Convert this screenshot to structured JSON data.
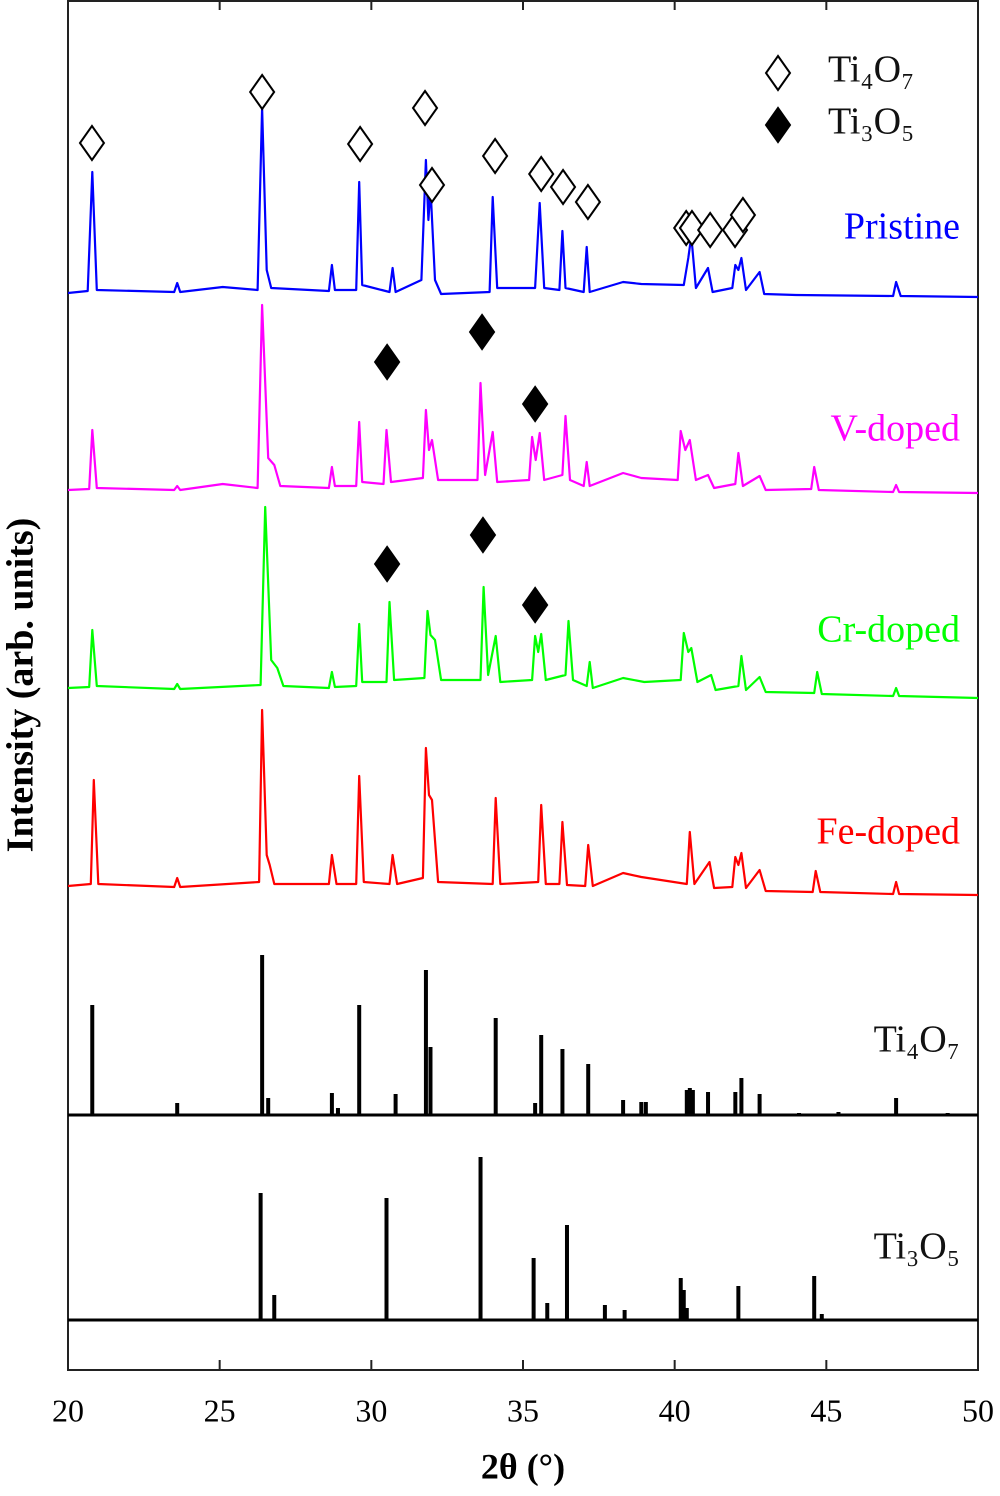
{
  "chart_data": {
    "type": "line",
    "xlabel": "2θ (°)",
    "ylabel": "Intensity (arb. units)",
    "xlim": [
      20,
      50
    ],
    "xticks": [
      20,
      25,
      30,
      35,
      40,
      45,
      50
    ],
    "ylim": [
      0,
      1370
    ],
    "legend": "upper right",
    "series": [
      {
        "name": "Pristine",
        "color": "#0000ff",
        "x": [
          20.0,
          20.65,
          20.8,
          20.95,
          23.5,
          23.6,
          23.7,
          25.1,
          26.25,
          26.4,
          26.55,
          26.7,
          28.6,
          28.7,
          28.8,
          29.5,
          29.6,
          29.7,
          30.6,
          30.7,
          30.8,
          31.65,
          31.8,
          31.88,
          31.95,
          32.1,
          32.3,
          33.9,
          34.0,
          34.15,
          35.4,
          35.55,
          35.7,
          36.2,
          36.3,
          36.4,
          37.0,
          37.1,
          37.2,
          38.3,
          38.9,
          40.3,
          40.45,
          40.55,
          40.7,
          41.1,
          41.25,
          41.9,
          42.0,
          42.1,
          42.2,
          42.35,
          42.8,
          42.95,
          44.0,
          47.2,
          47.3,
          47.45,
          50.0
        ],
        "values": [
          1077,
          1079,
          1198,
          1080,
          1078,
          1087,
          1078,
          1083,
          1080,
          1262,
          1100,
          1082,
          1079,
          1105,
          1080,
          1080,
          1188,
          1085,
          1078,
          1102,
          1078,
          1090,
          1210,
          1150,
          1182,
          1090,
          1076,
          1078,
          1173,
          1082,
          1082,
          1167,
          1082,
          1080,
          1139,
          1082,
          1078,
          1123,
          1078,
          1088,
          1086,
          1085,
          1112,
          1134,
          1082,
          1102,
          1078,
          1082,
          1105,
          1100,
          1112,
          1080,
          1098,
          1076,
          1075,
          1074,
          1088,
          1074,
          1073
        ]
      },
      {
        "name": "V-doped",
        "color": "#ff00ff",
        "x": [
          20.0,
          20.7,
          20.8,
          20.95,
          23.5,
          23.6,
          23.7,
          25.1,
          26.25,
          26.4,
          26.6,
          26.8,
          27.0,
          28.6,
          28.7,
          28.8,
          29.5,
          29.6,
          29.7,
          30.4,
          30.5,
          30.65,
          31.7,
          31.8,
          31.9,
          32.0,
          32.2,
          33.5,
          33.6,
          33.75,
          34.0,
          34.15,
          35.2,
          35.3,
          35.42,
          35.55,
          35.7,
          36.3,
          36.4,
          36.55,
          37.0,
          37.1,
          37.2,
          38.3,
          38.9,
          40.1,
          40.2,
          40.35,
          40.5,
          40.7,
          41.1,
          41.3,
          42.0,
          42.1,
          42.25,
          42.8,
          43.0,
          44.5,
          44.6,
          44.75,
          47.2,
          47.3,
          47.4,
          50.0
        ],
        "values": [
          880,
          881,
          940,
          882,
          880,
          884,
          880,
          886,
          882,
          1065,
          912,
          905,
          884,
          882,
          903,
          884,
          884,
          948,
          888,
          886,
          940,
          888,
          892,
          960,
          920,
          930,
          890,
          890,
          987,
          895,
          938,
          888,
          890,
          933,
          910,
          937,
          890,
          895,
          954,
          890,
          884,
          908,
          884,
          897,
          892,
          890,
          939,
          920,
          930,
          890,
          895,
          882,
          886,
          917,
          884,
          894,
          880,
          881,
          903,
          880,
          878,
          885,
          878,
          877
        ]
      },
      {
        "name": "Cr-doped",
        "color": "#00ff00",
        "x": [
          20.0,
          20.7,
          20.8,
          20.95,
          23.5,
          23.6,
          23.7,
          26.35,
          26.5,
          26.7,
          26.9,
          27.1,
          28.6,
          28.7,
          28.8,
          29.5,
          29.6,
          29.7,
          30.5,
          30.6,
          30.75,
          31.75,
          31.85,
          31.95,
          32.1,
          32.3,
          33.6,
          33.7,
          33.85,
          34.1,
          34.25,
          35.3,
          35.4,
          35.5,
          35.6,
          35.75,
          36.4,
          36.5,
          36.65,
          37.1,
          37.2,
          37.3,
          38.3,
          39.0,
          40.2,
          40.3,
          40.45,
          40.55,
          40.75,
          41.2,
          41.35,
          42.1,
          42.2,
          42.35,
          42.8,
          43.0,
          44.6,
          44.7,
          44.85,
          47.2,
          47.3,
          47.4,
          50.0
        ],
        "values": [
          682,
          683,
          740,
          684,
          681,
          686,
          681,
          685,
          863,
          710,
          702,
          684,
          682,
          698,
          683,
          684,
          746,
          688,
          688,
          768,
          690,
          692,
          759,
          735,
          730,
          690,
          690,
          783,
          695,
          734,
          688,
          690,
          734,
          718,
          736,
          690,
          695,
          749,
          690,
          684,
          708,
          682,
          692,
          688,
          690,
          737,
          718,
          722,
          688,
          695,
          680,
          684,
          714,
          680,
          693,
          678,
          677,
          698,
          676,
          674,
          682,
          674,
          672
        ]
      },
      {
        "name": "Fe-doped",
        "color": "#ff0000",
        "x": [
          20.0,
          20.75,
          20.85,
          21.0,
          23.5,
          23.6,
          23.7,
          26.3,
          26.4,
          26.55,
          26.65,
          26.8,
          28.6,
          28.7,
          28.85,
          29.5,
          29.6,
          29.75,
          30.6,
          30.7,
          30.85,
          31.7,
          31.8,
          31.9,
          32.0,
          32.2,
          34.0,
          34.1,
          34.25,
          35.5,
          35.6,
          35.75,
          36.2,
          36.3,
          36.45,
          37.05,
          37.15,
          37.3,
          38.3,
          38.9,
          40.4,
          40.5,
          40.65,
          41.15,
          41.3,
          41.9,
          42.0,
          42.1,
          42.2,
          42.35,
          42.8,
          43.0,
          44.55,
          44.65,
          44.8,
          47.2,
          47.3,
          47.4,
          50.0
        ],
        "values": [
          484,
          486,
          590,
          486,
          483,
          492,
          483,
          488,
          660,
          515,
          505,
          486,
          486,
          515,
          486,
          486,
          594,
          488,
          486,
          515,
          486,
          492,
          622,
          575,
          570,
          488,
          486,
          572,
          486,
          488,
          565,
          486,
          486,
          548,
          485,
          484,
          525,
          484,
          497,
          493,
          486,
          538,
          486,
          508,
          482,
          483,
          513,
          505,
          517,
          482,
          500,
          479,
          478,
          499,
          478,
          476,
          488,
          476,
          475
        ]
      }
    ],
    "reference_series": [
      {
        "name": "Ti₄O₇",
        "color": "#000000",
        "base": 255,
        "x": [
          20.8,
          23.6,
          26.4,
          26.6,
          28.7,
          28.9,
          29.6,
          30.8,
          31.8,
          31.95,
          34.1,
          35.4,
          35.6,
          36.3,
          37.15,
          38.3,
          38.9,
          39.05,
          40.4,
          40.5,
          40.6,
          41.1,
          42.0,
          42.2,
          42.8,
          44.1,
          45.4,
          47.3,
          49.0
        ],
        "values": [
          365,
          267,
          415,
          272,
          277,
          262,
          365,
          276,
          400,
          323,
          352,
          267,
          335,
          321,
          306,
          270,
          268,
          268,
          280,
          282,
          280,
          278,
          278,
          292,
          276,
          257,
          258,
          272,
          257
        ]
      },
      {
        "name": "Ti₃O₅",
        "color": "#000000",
        "base": 50,
        "x": [
          26.35,
          26.8,
          30.5,
          33.6,
          35.35,
          35.8,
          36.45,
          37.7,
          38.35,
          40.2,
          40.3,
          40.4,
          42.1,
          44.6,
          44.85
        ],
        "values": [
          177,
          75,
          172,
          213,
          112,
          67,
          145,
          65,
          60,
          92,
          80,
          62,
          84,
          94,
          56
        ]
      }
    ],
    "peak_markers": [
      {
        "name": "Ti₄O₇",
        "filled": false,
        "x": [
          20.79,
          26.4,
          29.63,
          31.77,
          32.0,
          34.08,
          35.6,
          36.32,
          37.14,
          40.38,
          40.57,
          41.17,
          41.99,
          42.25
        ],
        "y": [
          1227,
          1278,
          1226,
          1262,
          1185,
          1214,
          1196,
          1183,
          1168,
          1142,
          1142,
          1140,
          1140,
          1155
        ]
      },
      {
        "name": "Ti₃O₅",
        "filled": true,
        "x": [
          30.52,
          33.65,
          35.4,
          30.52,
          33.68,
          35.4
        ],
        "y": [
          1008,
          1038,
          966,
          806,
          835,
          765
        ]
      }
    ]
  }
}
